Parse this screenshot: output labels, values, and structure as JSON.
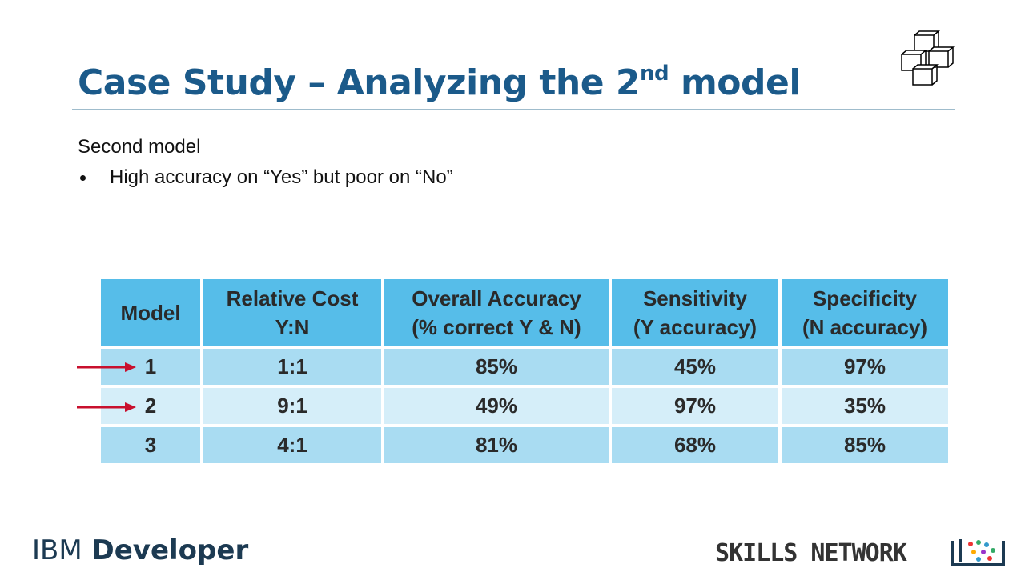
{
  "header": {
    "title": "Case Study – Analyzing the 2",
    "title_sup": "nd",
    "title_end": " model"
  },
  "body": {
    "heading": "Second model",
    "bullets": [
      "High accuracy on “Yes” but poor on “No”"
    ]
  },
  "table": {
    "columns": [
      [
        "Model"
      ],
      [
        "Relative Cost",
        "Y:N"
      ],
      [
        "Overall Accuracy",
        "(% correct Y & N)"
      ],
      [
        "Sensitivity",
        "(Y accuracy)"
      ],
      [
        "Specificity",
        "(N accuracy)"
      ]
    ],
    "rows": [
      [
        "1",
        "1:1",
        "85%",
        "45%",
        "97%"
      ],
      [
        "2",
        "9:1",
        "49%",
        "97%",
        "35%"
      ],
      [
        "3",
        "4:1",
        "81%",
        "68%",
        "85%"
      ]
    ]
  },
  "footer": {
    "brand_bold": "IBM",
    "brand_rest": " Developer",
    "network": "SKILLS NETWORK"
  }
}
